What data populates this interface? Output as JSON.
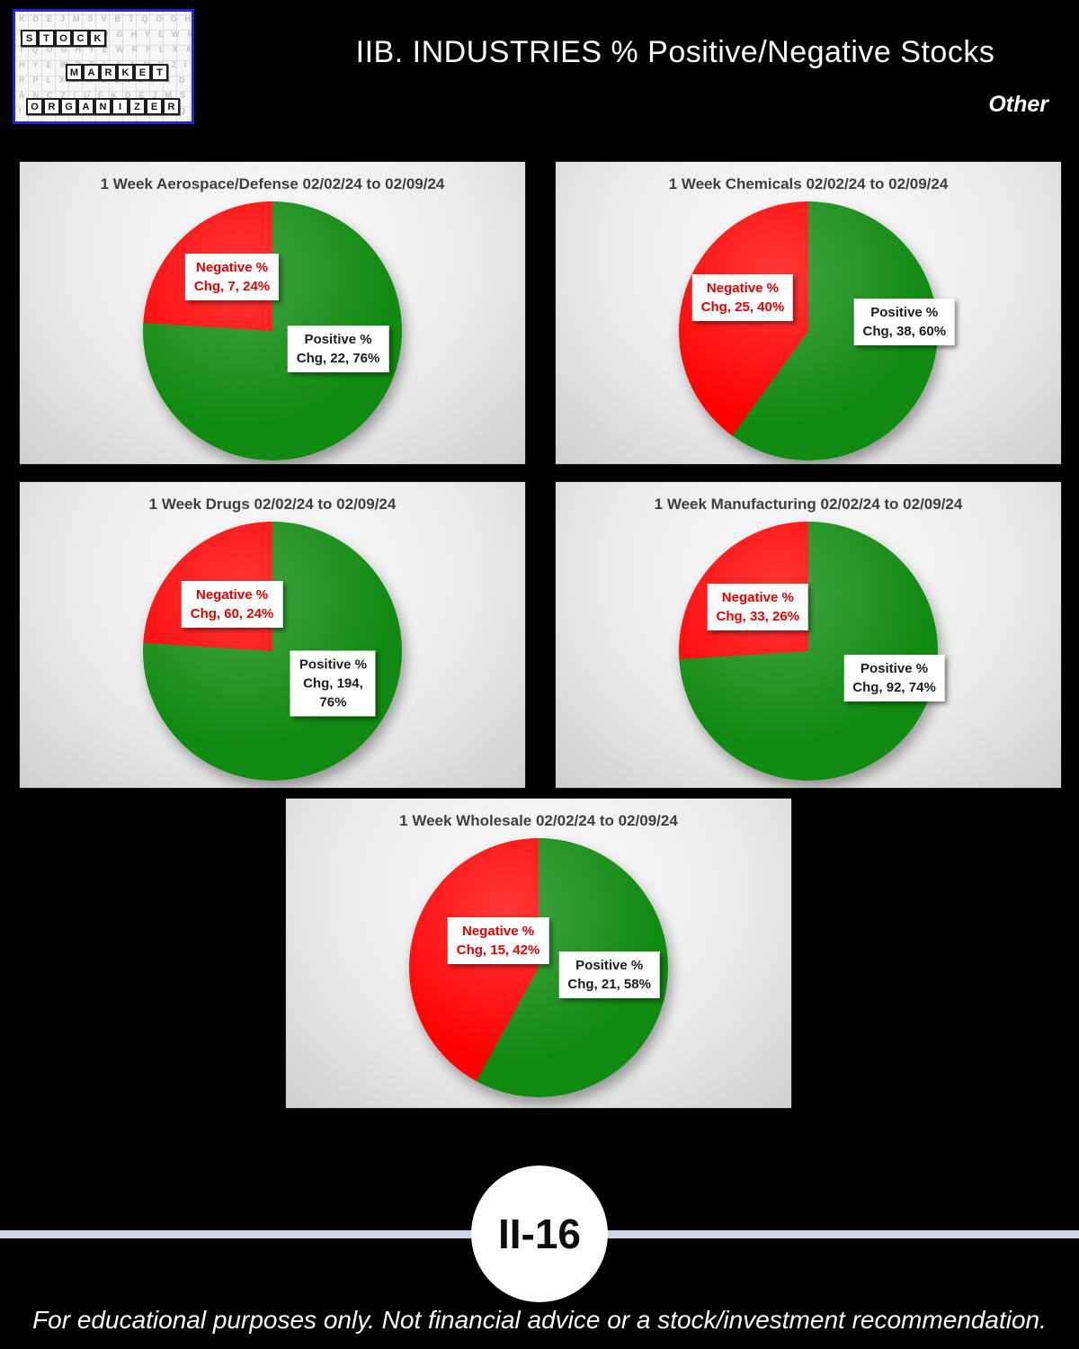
{
  "header": {
    "title": "IIB. INDUSTRIES % Positive/Negative Stocks",
    "subtitle": "Other"
  },
  "logo": {
    "words": [
      "STOCK",
      "MARKET",
      "ORGANIZER"
    ]
  },
  "colors": {
    "positive": "#108a10",
    "negative": "#fe0000"
  },
  "chart_data": [
    {
      "type": "pie",
      "title": "1 Week Aerospace/Defense 02/02/24 to 02/09/24",
      "labels": [
        "Positive % Chg",
        "Negative % Chg"
      ],
      "counts": [
        22,
        7
      ],
      "percents": [
        76,
        24
      ],
      "legend_position": "none"
    },
    {
      "type": "pie",
      "title": "1 Week Chemicals 02/02/24 to 02/09/24",
      "labels": [
        "Positive % Chg",
        "Negative % Chg"
      ],
      "counts": [
        38,
        25
      ],
      "percents": [
        60,
        40
      ],
      "legend_position": "none"
    },
    {
      "type": "pie",
      "title": "1 Week Drugs 02/02/24 to 02/09/24",
      "labels": [
        "Positive % Chg",
        "Negative % Chg"
      ],
      "counts": [
        194,
        60
      ],
      "percents": [
        76,
        24
      ],
      "legend_position": "none"
    },
    {
      "type": "pie",
      "title": "1 Week Manufacturing 02/02/24 to 02/09/24",
      "labels": [
        "Positive % Chg",
        "Negative % Chg"
      ],
      "counts": [
        92,
        33
      ],
      "percents": [
        74,
        26
      ],
      "legend_position": "none"
    },
    {
      "type": "pie",
      "title": "1 Week Wholesale 02/02/24 to 02/09/24",
      "labels": [
        "Positive % Chg",
        "Negative % Chg"
      ],
      "counts": [
        21,
        15
      ],
      "percents": [
        58,
        42
      ],
      "legend_position": "none"
    }
  ],
  "charts": [
    {
      "title": "1 Week Aerospace/Defense 02/02/24 to 02/09/24",
      "negative": {
        "lines": [
          "Negative %",
          "Chg, 7, 24%"
        ]
      },
      "positive": {
        "lines": [
          "Positive %",
          "Chg, 22, 76%"
        ],
        "pct": 76
      }
    },
    {
      "title": "1 Week Chemicals 02/02/24 to 02/09/24",
      "negative": {
        "lines": [
          "Negative %",
          "Chg, 25, 40%"
        ]
      },
      "positive": {
        "lines": [
          "Positive %",
          "Chg, 38, 60%"
        ],
        "pct": 60
      }
    },
    {
      "title": "1 Week Drugs 02/02/24 to 02/09/24",
      "negative": {
        "lines": [
          "Negative %",
          "Chg, 60, 24%"
        ]
      },
      "positive": {
        "lines": [
          "Positive %",
          "Chg, 194,",
          "76%"
        ],
        "pct": 76
      }
    },
    {
      "title": "1 Week Manufacturing 02/02/24 to 02/09/24",
      "negative": {
        "lines": [
          "Negative %",
          "Chg, 33, 26%"
        ]
      },
      "positive": {
        "lines": [
          "Positive %",
          "Chg, 92, 74%"
        ],
        "pct": 74
      }
    },
    {
      "title": "1 Week Wholesale 02/02/24 to 02/09/24",
      "negative": {
        "lines": [
          "Negative %",
          "Chg, 15, 42%"
        ]
      },
      "positive": {
        "lines": [
          "Positive %",
          "Chg, 21, 58%"
        ],
        "pct": 58
      }
    }
  ],
  "badge": {
    "label": "II-16"
  },
  "footer": {
    "text": "For educational purposes only. Not financial advice or a stock/investment recommendation."
  }
}
